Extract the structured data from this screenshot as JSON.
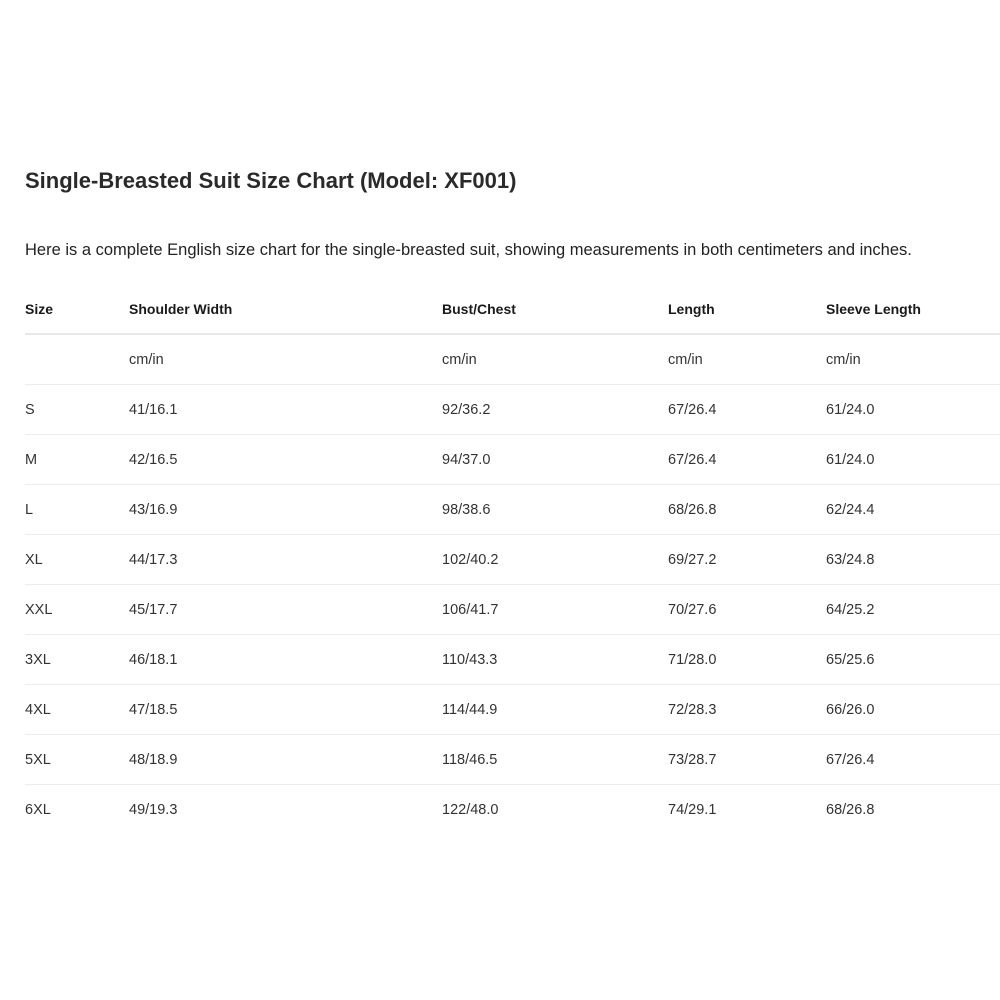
{
  "title": "Single-Breasted Suit Size Chart (Model: XF001)",
  "intro": "Here is a complete English size chart for the single-breasted suit, showing measurements in both centimeters and inches.",
  "table": {
    "headers": [
      "Size",
      "Shoulder Width",
      "Bust/Chest",
      "Length",
      "Sleeve Length"
    ],
    "rows": [
      [
        "",
        "cm/in",
        "cm/in",
        "cm/in",
        "cm/in"
      ],
      [
        "S",
        "41/16.1",
        "92/36.2",
        "67/26.4",
        "61/24.0"
      ],
      [
        "M",
        "42/16.5",
        "94/37.0",
        "67/26.4",
        "61/24.0"
      ],
      [
        "L",
        "43/16.9",
        "98/38.6",
        "68/26.8",
        "62/24.4"
      ],
      [
        "XL",
        "44/17.3",
        "102/40.2",
        "69/27.2",
        "63/24.8"
      ],
      [
        "XXL",
        "45/17.7",
        "106/41.7",
        "70/27.6",
        "64/25.2"
      ],
      [
        "3XL",
        "46/18.1",
        "110/43.3",
        "71/28.0",
        "65/25.6"
      ],
      [
        "4XL",
        "47/18.5",
        "114/44.9",
        "72/28.3",
        "66/26.0"
      ],
      [
        "5XL",
        "48/18.9",
        "118/46.5",
        "73/28.7",
        "67/26.4"
      ],
      [
        "6XL",
        "49/19.3",
        "122/48.0",
        "74/29.1",
        "68/26.8"
      ]
    ]
  }
}
